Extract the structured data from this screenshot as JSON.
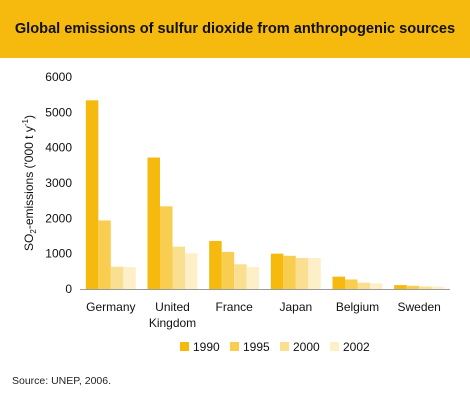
{
  "title": "Global emissions of sulfur dioxide from anthropogenic sources",
  "source_note": "Source: UNEP, 2006.",
  "chart_data": {
    "type": "bar",
    "ylabel": "SO2-emissions ('000 t y-1)",
    "ylabel_parts": {
      "pre": "SO",
      "sub": "2",
      "mid": "-emissions ('000 t y",
      "sup": "-1",
      "post": ")"
    },
    "ylim": [
      0,
      6000
    ],
    "yticks": [
      0,
      1000,
      2000,
      3000,
      4000,
      5000,
      6000
    ],
    "grid": false,
    "legend_position": "bottom",
    "categories": [
      [
        "Germany"
      ],
      [
        "United",
        "Kingdom"
      ],
      [
        "France"
      ],
      [
        "Japan"
      ],
      [
        "Belgium"
      ],
      [
        "Sweden"
      ]
    ],
    "series": [
      {
        "name": "1990",
        "color": "#f6b90d",
        "values": [
          5340,
          3720,
          1360,
          1000,
          350,
          110
        ]
      },
      {
        "name": "1995",
        "color": "#f9cd4f",
        "values": [
          1940,
          2340,
          1050,
          940,
          270,
          90
        ]
      },
      {
        "name": "2000",
        "color": "#fbdf91",
        "values": [
          630,
          1200,
          700,
          880,
          180,
          70
        ]
      },
      {
        "name": "2002",
        "color": "#fdf0c9",
        "values": [
          620,
          1010,
          620,
          880,
          160,
          70
        ]
      }
    ]
  }
}
